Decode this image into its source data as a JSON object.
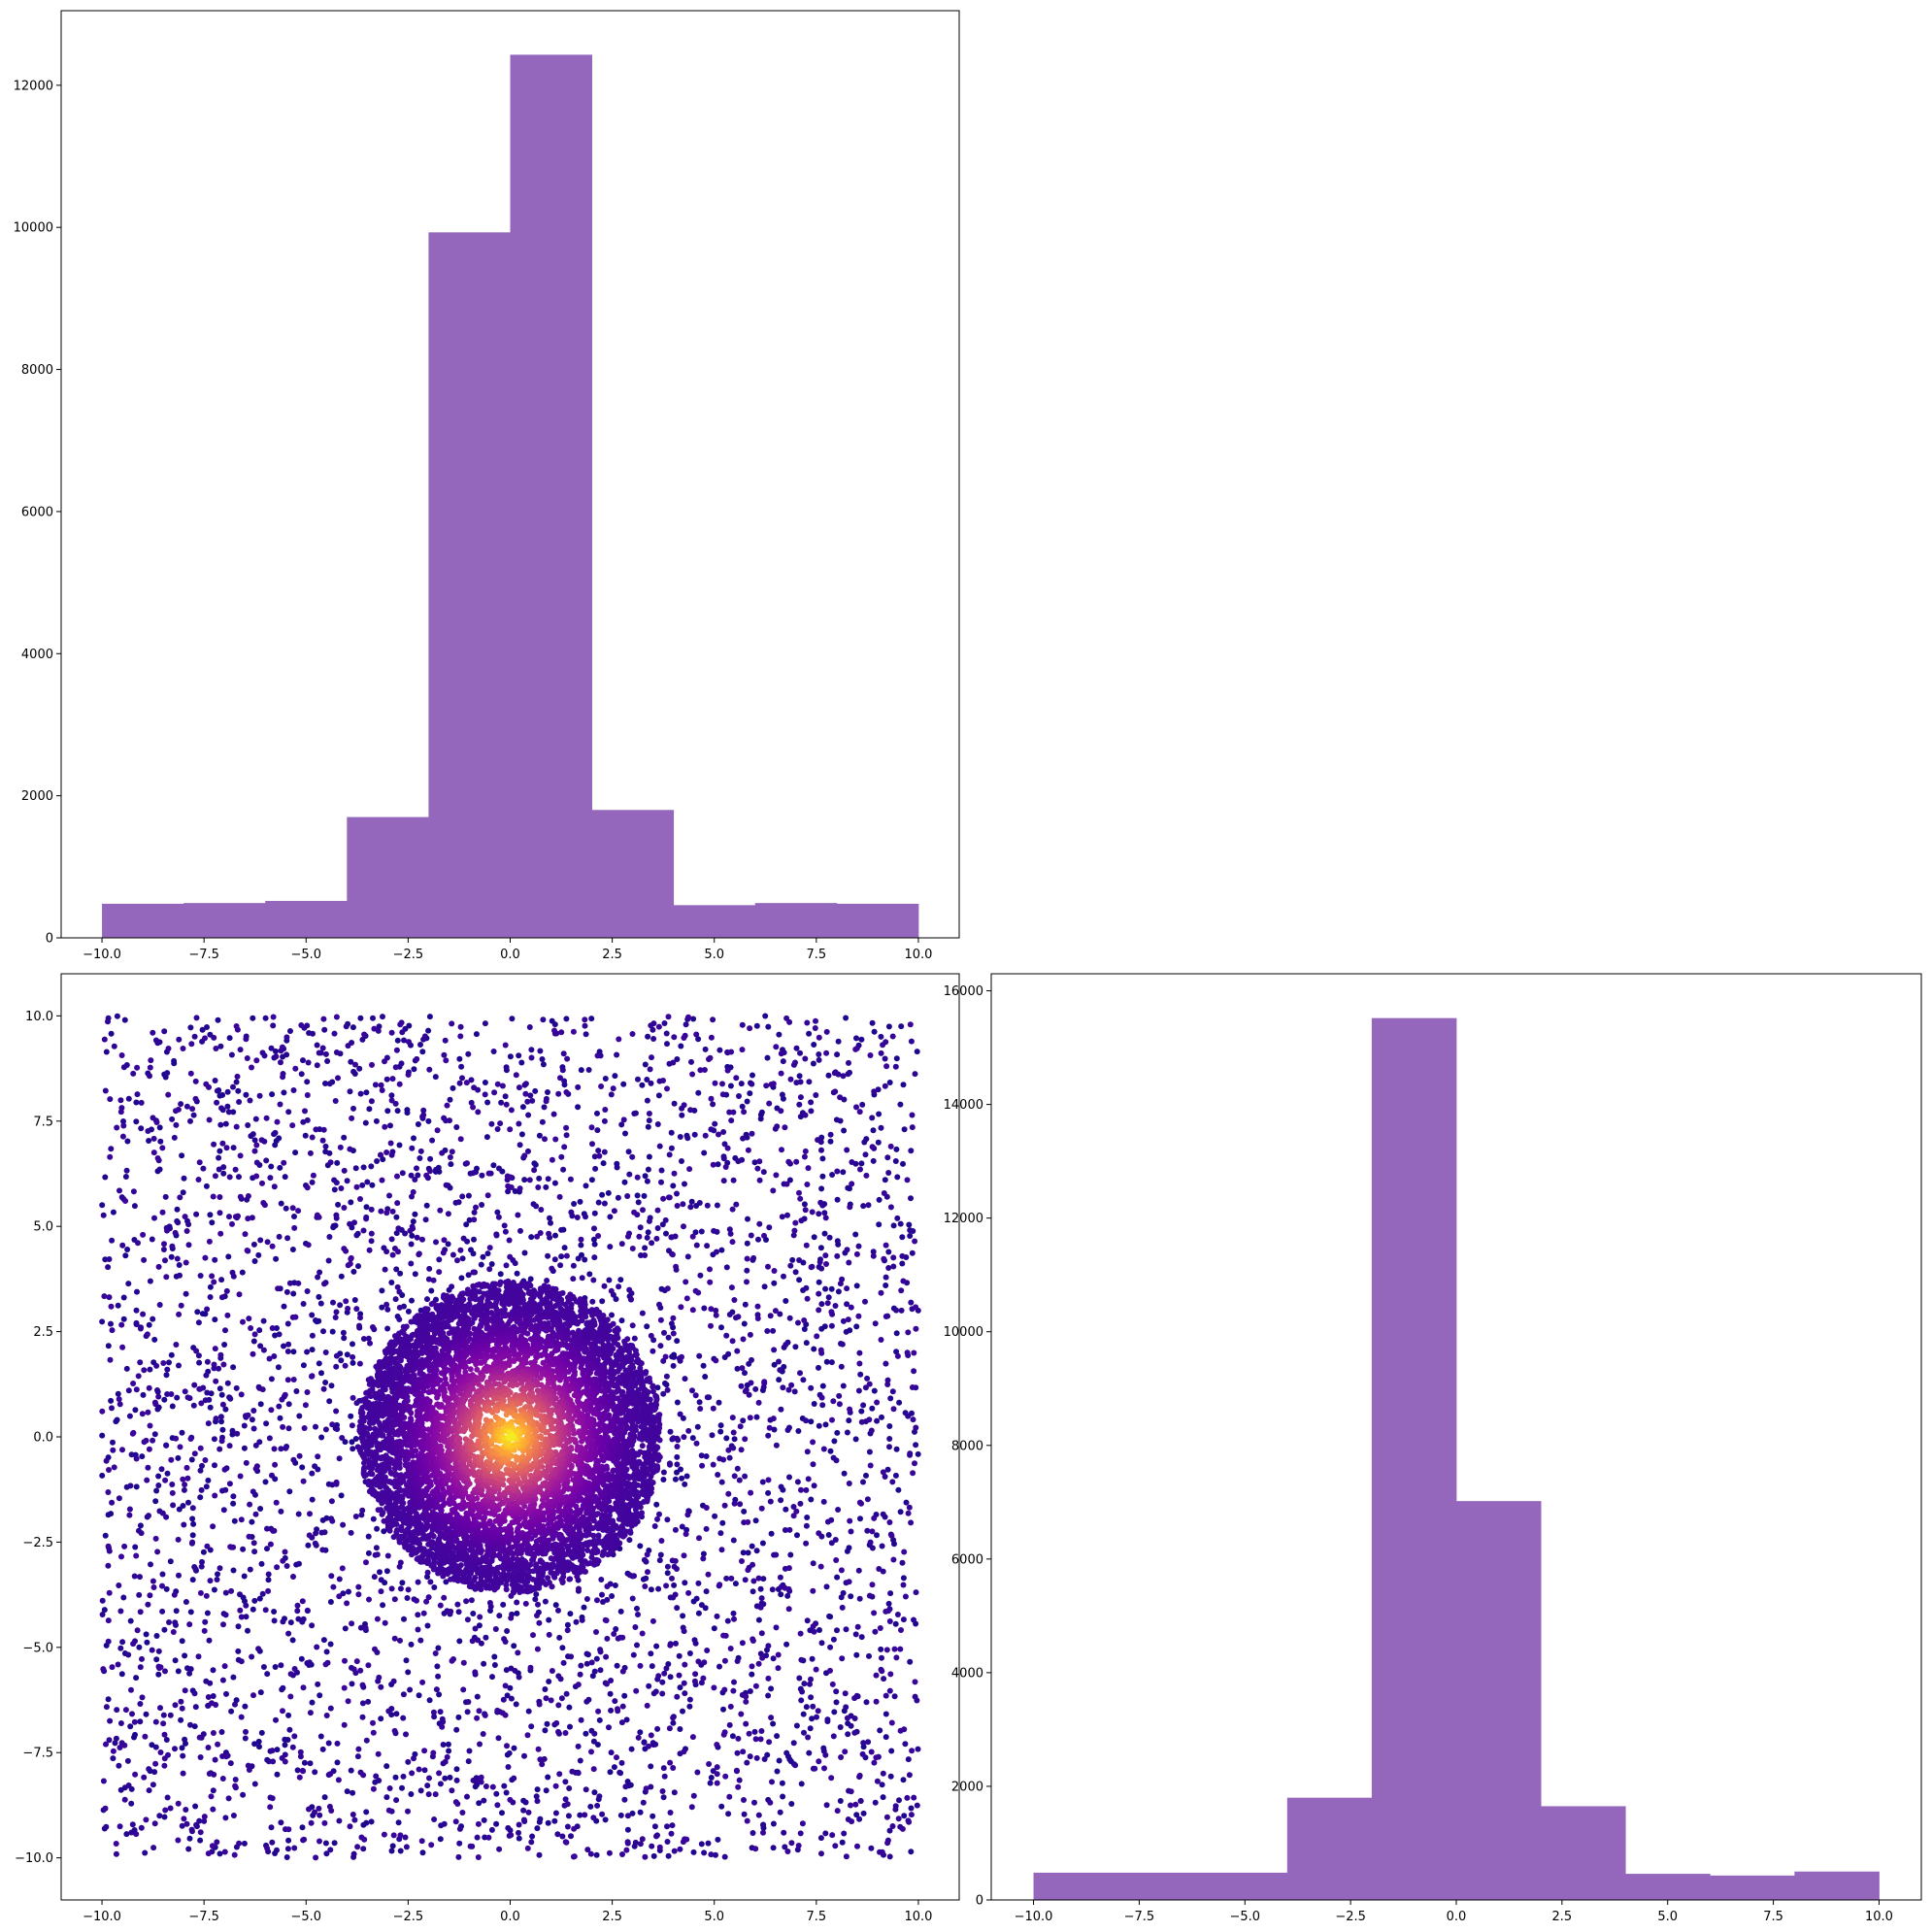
{
  "chart_data": [
    {
      "panel": "top-left",
      "type": "bar",
      "subtype": "histogram",
      "bar_color": "#9467bd",
      "bin_edges": [
        -10,
        -8,
        -6,
        -4,
        -2,
        0,
        2,
        4,
        6,
        8,
        10
      ],
      "values": [
        480,
        490,
        520,
        1700,
        9930,
        12430,
        1800,
        460,
        490,
        480
      ],
      "xlim": [
        -11,
        11
      ],
      "ylim": [
        0,
        13050
      ],
      "xticks": [
        -10.0,
        -7.5,
        -5.0,
        -2.5,
        0.0,
        2.5,
        5.0,
        7.5,
        10.0
      ],
      "xtick_labels": [
        "−10.0",
        "−7.5",
        "−5.0",
        "−2.5",
        "0.0",
        "2.5",
        "5.0",
        "7.5",
        "10.0"
      ],
      "yticks": [
        0,
        2000,
        4000,
        6000,
        8000,
        10000,
        12000
      ],
      "ytick_labels": [
        "0",
        "2000",
        "4000",
        "6000",
        "8000",
        "10000",
        "12000"
      ],
      "grid": false
    },
    {
      "panel": "bottom-left",
      "type": "scatter",
      "colormap": "plasma",
      "color_encoding": "density",
      "description_of_points": "uniform background over [-10,10] x [-10,10] plus a dense disk of radius about 3.7 centered at (0,0); color brightens toward the center",
      "point_counts": {
        "background": 4300,
        "central_disk": 7000
      },
      "central_disk": {
        "center": [
          0,
          0
        ],
        "radius": 3.7
      },
      "x_range": [
        -10,
        10
      ],
      "y_range": [
        -10,
        10
      ],
      "xlim": [
        -11,
        11
      ],
      "ylim": [
        -11,
        11
      ],
      "xticks": [
        -10.0,
        -7.5,
        -5.0,
        -2.5,
        0.0,
        2.5,
        5.0,
        7.5,
        10.0
      ],
      "xtick_labels": [
        "−10.0",
        "−7.5",
        "−5.0",
        "−2.5",
        "0.0",
        "2.5",
        "5.0",
        "7.5",
        "10.0"
      ],
      "yticks": [
        10.0,
        7.5,
        5.0,
        2.5,
        0.0,
        -2.5,
        -5.0,
        -7.5,
        -10.0
      ],
      "ytick_labels": [
        "10.0",
        "7.5",
        "5.0",
        "2.5",
        "0.0",
        "−2.5",
        "−5.0",
        "−7.5",
        "−10.0"
      ],
      "grid": false
    },
    {
      "panel": "bottom-right",
      "type": "bar",
      "subtype": "histogram",
      "bar_color": "#9467bd",
      "bin_edges": [
        -10,
        -8,
        -6,
        -4,
        -2,
        0,
        2,
        4,
        6,
        8,
        10
      ],
      "values": [
        480,
        480,
        480,
        1800,
        15520,
        7020,
        1650,
        460,
        430,
        500
      ],
      "xlim": [
        -11,
        11
      ],
      "ylim": [
        0,
        16300
      ],
      "xticks": [
        -10.0,
        -7.5,
        -5.0,
        -2.5,
        0.0,
        2.5,
        5.0,
        7.5,
        10.0
      ],
      "xtick_labels": [
        "−10.0",
        "−7.5",
        "−5.0",
        "−2.5",
        "0.0",
        "2.5",
        "5.0",
        "7.5",
        "10.0"
      ],
      "yticks": [
        0,
        2000,
        4000,
        6000,
        8000,
        10000,
        12000,
        14000,
        16000
      ],
      "ytick_labels": [
        "0",
        "2000",
        "4000",
        "6000",
        "8000",
        "10000",
        "12000",
        "14000",
        "16000"
      ],
      "grid": false
    }
  ]
}
